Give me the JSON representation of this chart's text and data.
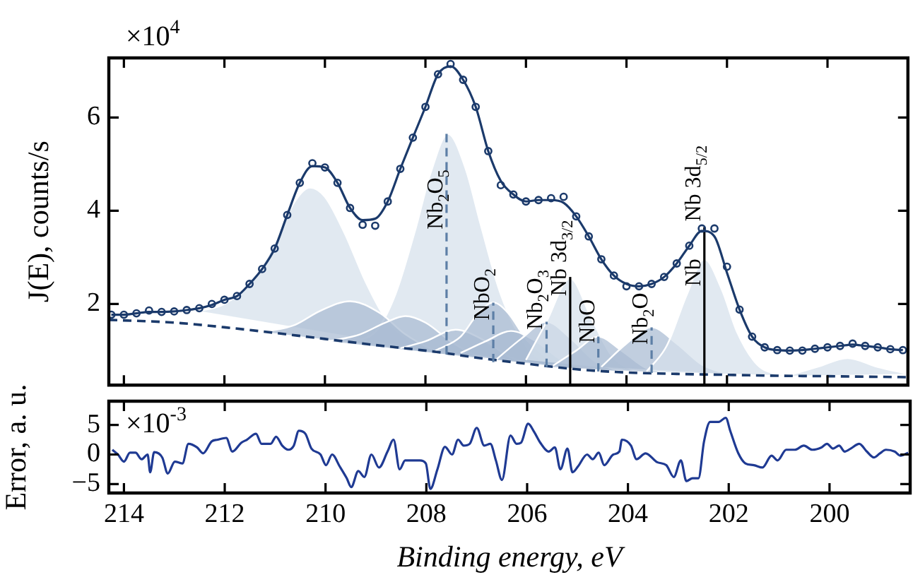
{
  "chart_data": [
    {
      "type": "line",
      "ylabel": "J(E), counts/s",
      "annotations": [
        "×10$^{4}$",
        {
          "text": "Nb$_{2}$O$_{5}$",
          "x": 207.58,
          "y": 3.6
        },
        {
          "text": "NbO$_{2}$",
          "x": 206.65,
          "y": 1.65
        },
        {
          "text": "Nb$_{2}$O$_{3}$",
          "x": 205.59,
          "y": 1.45
        },
        {
          "text": "Nb 3d$_{3/2}$",
          "x": 205.12,
          "y": 2.17
        },
        {
          "text": "NbO",
          "x": 204.56,
          "y": 1.16
        },
        {
          "text": "Nb$_{2}$O",
          "x": 203.5,
          "y": 1.13
        },
        {
          "text": "Nb",
          "x": 202.45,
          "y": 2.38
        },
        {
          "text": "Nb 3d$_{5/2}$",
          "x": 202.45,
          "y": 3.77
        }
      ],
      "x": [
        214.25,
        214.0,
        213.75,
        213.5,
        213.25,
        213.0,
        212.75,
        212.5,
        212.25,
        212.0,
        211.75,
        211.5,
        211.25,
        211.0,
        210.75,
        210.5,
        210.25,
        210.0,
        209.75,
        209.5,
        209.25,
        209.0,
        208.75,
        208.5,
        208.25,
        208.0,
        207.75,
        207.5,
        207.25,
        207.0,
        206.75,
        206.5,
        206.25,
        206.0,
        205.75,
        205.5,
        205.25,
        205.0,
        204.75,
        204.5,
        204.25,
        204.0,
        203.75,
        203.5,
        203.25,
        203.0,
        202.75,
        202.5,
        202.25,
        202.0,
        201.75,
        201.5,
        201.25,
        201.0,
        200.75,
        200.5,
        200.25,
        200.0,
        199.75,
        199.5,
        199.25,
        199.0,
        198.75,
        198.5
      ],
      "xlim": [
        214.3,
        198.4
      ],
      "xticks": [
        214,
        212,
        210,
        208,
        206,
        204,
        202,
        200
      ],
      "ylim": [
        0.26,
        7.28
      ],
      "yticks": [
        2,
        4,
        6
      ],
      "tick_labels": "y",
      "grid": false,
      "series": [
        {
          "type": "area",
          "color": "#d6e0ec",
          "x": [
            212.5,
            212,
            211.5,
            211,
            210.6,
            210.3,
            210,
            209.6,
            209.2,
            208.8,
            208.3,
            207.8
          ],
          "values": [
            1.85,
            2.0,
            2.45,
            3.3,
            4.2,
            4.5,
            4.3,
            3.5,
            2.5,
            1.7,
            1.2,
            1.0
          ]
        },
        {
          "type": "area",
          "color": "#d6e0ec",
          "x": [
            209.5,
            209,
            208.6,
            208.2,
            207.9,
            207.55,
            207.2,
            206.9,
            206.5,
            206,
            205.5,
            205
          ],
          "values": [
            1.2,
            1.4,
            2.2,
            3.6,
            4.8,
            5.65,
            4.9,
            3.7,
            2.2,
            1.1,
            0.7,
            0.6
          ]
        },
        {
          "type": "area",
          "color": "#a9bbd2",
          "x": [
            211.2,
            210.6,
            210.1,
            209.5,
            208.9,
            208.4,
            207.9,
            207.4
          ],
          "values": [
            1.4,
            1.55,
            1.85,
            2.06,
            1.8,
            1.35,
            1.05,
            0.9
          ]
        },
        {
          "type": "area",
          "color": "#a9bbd2",
          "x": [
            209.9,
            209.3,
            208.8,
            208.4,
            208,
            207.5,
            207,
            206.6
          ],
          "values": [
            1.2,
            1.35,
            1.6,
            1.74,
            1.6,
            1.2,
            0.9,
            0.8
          ]
        },
        {
          "type": "area",
          "color": "#a9bbd2",
          "x": [
            208.5,
            208,
            207.4,
            206.8,
            206.3,
            205.8
          ],
          "values": [
            1.05,
            1.2,
            1.45,
            1.2,
            0.85,
            0.72
          ]
        },
        {
          "type": "area",
          "color": "#a9bbd2",
          "x": [
            207.8,
            207.3,
            206.95,
            206.65,
            206.35,
            206,
            205.5,
            205
          ],
          "values": [
            1.0,
            1.3,
            1.8,
            2.03,
            1.8,
            1.25,
            0.8,
            0.62
          ]
        },
        {
          "type": "area",
          "color": "#a9bbd2",
          "x": [
            207.3,
            206.8,
            206.3,
            205.8,
            205.3,
            204.8
          ],
          "values": [
            0.95,
            1.2,
            1.42,
            1.2,
            0.8,
            0.6
          ]
        },
        {
          "type": "area",
          "color": "#a9bbd2",
          "x": [
            206.6,
            206.1,
            205.59,
            205.1,
            204.6,
            204.1
          ],
          "values": [
            0.8,
            1.25,
            1.62,
            1.25,
            0.75,
            0.55
          ]
        },
        {
          "type": "area",
          "color": "#d6e0ec",
          "x": [
            206,
            205.6,
            205.12,
            204.7,
            204.3,
            203.9,
            203.4
          ],
          "values": [
            0.8,
            1.6,
            2.55,
            1.7,
            0.9,
            0.6,
            0.52
          ]
        },
        {
          "type": "area",
          "color": "#a9bbd2",
          "x": [
            205.5,
            205,
            204.56,
            204.1,
            203.6,
            203.1
          ],
          "values": [
            0.65,
            1.0,
            1.3,
            1.0,
            0.62,
            0.52
          ]
        },
        {
          "type": "area",
          "color": "#a9bbd2",
          "x": [
            204.5,
            204,
            203.5,
            203,
            202.5,
            202
          ],
          "values": [
            0.65,
            1.15,
            1.5,
            1.15,
            0.7,
            0.5
          ]
        },
        {
          "type": "area",
          "color": "#d6e0ec",
          "x": [
            203.6,
            203.2,
            202.8,
            202.45,
            202.1,
            201.8,
            201.4,
            201,
            200.5
          ],
          "values": [
            0.55,
            1.1,
            2.2,
            2.96,
            2.3,
            1.4,
            0.7,
            0.5,
            0.46
          ]
        },
        {
          "type": "area",
          "color": "#d6e0ec",
          "x": [
            200.8,
            200.2,
            199.6,
            199,
            198.4
          ],
          "values": [
            0.46,
            0.65,
            0.84,
            0.65,
            0.5
          ]
        },
        {
          "type": "line",
          "color": "#1b3a6b",
          "line_style": "dashed",
          "x": [
            214.3,
            213,
            212,
            211,
            210,
            209,
            208,
            207.5,
            207,
            206,
            205,
            204,
            203,
            202,
            201,
            200,
            198.4
          ],
          "values": [
            1.66,
            1.6,
            1.5,
            1.38,
            1.25,
            1.12,
            1.0,
            0.93,
            0.85,
            0.72,
            0.6,
            0.53,
            0.5,
            0.48,
            0.46,
            0.45,
            0.43
          ]
        },
        {
          "type": "line",
          "color": "#5d7fa6",
          "line_style": "dashed",
          "x": [
            207.58,
            207.58
          ],
          "values": [
            0.92,
            5.65
          ]
        },
        {
          "type": "line",
          "color": "#5d7fa6",
          "line_style": "dashed",
          "x": [
            206.65,
            206.65
          ],
          "values": [
            0.75,
            2.03
          ]
        },
        {
          "type": "line",
          "color": "#5d7fa6",
          "line_style": "dashed",
          "x": [
            205.59,
            205.59
          ],
          "values": [
            0.65,
            1.62
          ]
        },
        {
          "type": "line",
          "color": "#000000",
          "x": [
            205.12,
            205.12
          ],
          "values": [
            0.26,
            2.58
          ]
        },
        {
          "type": "line",
          "color": "#5d7fa6",
          "line_style": "dashed",
          "x": [
            204.56,
            204.56
          ],
          "values": [
            0.55,
            1.3
          ]
        },
        {
          "type": "line",
          "color": "#5d7fa6",
          "line_style": "dashed",
          "x": [
            203.5,
            203.5
          ],
          "values": [
            0.52,
            1.5
          ]
        },
        {
          "type": "line",
          "color": "#000000",
          "x": [
            202.45,
            202.45
          ],
          "values": [
            0.26,
            3.65
          ]
        },
        {
          "type": "line",
          "color": "#1b3a6b",
          "values": [
            1.77,
            1.77,
            1.8,
            1.83,
            1.83,
            1.84,
            1.87,
            1.91,
            1.98,
            2.09,
            2.17,
            2.43,
            2.75,
            3.19,
            3.91,
            4.6,
            4.96,
            4.93,
            4.6,
            4.06,
            3.8,
            3.83,
            4.2,
            4.9,
            5.57,
            6.23,
            6.93,
            7.1,
            6.81,
            6.23,
            5.28,
            4.64,
            4.35,
            4.2,
            4.23,
            4.23,
            4.17,
            3.88,
            3.45,
            2.96,
            2.61,
            2.43,
            2.38,
            2.43,
            2.58,
            2.87,
            3.25,
            3.57,
            3.45,
            2.67,
            1.88,
            1.3,
            1.07,
            1.01,
            1.0,
            1.01,
            1.04,
            1.07,
            1.1,
            1.13,
            1.1,
            1.07,
            1.03,
            1.01
          ]
        },
        {
          "type": "scatter",
          "color": "#1b3a6b",
          "marker": "circle",
          "values": [
            1.77,
            1.77,
            1.8,
            1.86,
            1.83,
            1.84,
            1.87,
            1.91,
            2.0,
            2.09,
            2.17,
            2.43,
            2.75,
            3.19,
            3.91,
            4.6,
            5.02,
            4.93,
            4.6,
            4.06,
            3.7,
            3.68,
            4.2,
            4.9,
            5.57,
            6.23,
            6.93,
            7.15,
            6.81,
            6.23,
            5.28,
            4.55,
            4.35,
            4.2,
            4.23,
            4.27,
            4.3,
            3.88,
            3.45,
            2.96,
            2.61,
            2.38,
            2.38,
            2.43,
            2.58,
            2.87,
            3.25,
            3.62,
            3.62,
            2.8,
            1.88,
            1.3,
            1.07,
            1.01,
            1.0,
            1.0,
            1.04,
            1.07,
            1.1,
            1.15,
            1.1,
            1.07,
            1.03,
            1.01
          ]
        }
      ]
    },
    {
      "type": "line",
      "xlabel": "Binding energy, eV",
      "ylabel": "Error, a. u.",
      "annotations": [
        "×10$^{-3}$"
      ],
      "x": [
        214.23,
        214.12,
        214.0,
        213.88,
        213.77,
        213.65,
        213.53,
        213.48,
        213.4,
        213.24,
        213.13,
        212.99,
        212.84,
        212.72,
        212.55,
        212.43,
        212.26,
        212.14,
        211.97,
        211.85,
        211.67,
        211.56,
        211.38,
        211.27,
        211.09,
        210.98,
        210.86,
        210.74,
        210.63,
        210.53,
        210.4,
        210.28,
        210.1,
        209.99,
        209.87,
        209.72,
        209.58,
        209.49,
        209.35,
        209.23,
        209.09,
        208.94,
        208.77,
        208.65,
        208.53,
        208.42,
        208.24,
        208.13,
        208.01,
        207.92,
        207.78,
        207.63,
        207.49,
        207.37,
        207.26,
        207.14,
        207.0,
        206.85,
        206.73,
        206.62,
        206.5,
        206.33,
        206.21,
        206.12,
        205.98,
        205.86,
        205.74,
        205.57,
        205.45,
        205.34,
        205.2,
        205.1,
        204.99,
        204.81,
        204.7,
        204.58,
        204.47,
        204.29,
        204.17,
        204.12,
        203.94,
        203.83,
        203.65,
        203.42,
        203.24,
        203.09,
        202.95,
        202.84,
        202.72,
        202.6,
        202.49,
        202.37,
        202.2,
        202.06,
        201.97,
        201.81,
        201.67,
        201.5,
        201.33,
        201.15,
        201.03,
        200.86,
        200.69,
        200.51,
        200.34,
        200.16,
        200.05,
        199.93,
        199.81,
        199.7,
        199.58,
        199.41,
        199.26,
        199.12,
        199.0,
        198.88,
        198.71,
        198.59,
        198.44
      ],
      "xlim": [
        214.3,
        198.4
      ],
      "xticks": [
        214,
        212,
        210,
        208,
        206,
        204,
        202,
        200
      ],
      "ylim": [
        -6.5,
        9
      ],
      "yticks": [
        {
          "value": -5,
          "label": "−5"
        },
        0,
        5
      ],
      "grid": false,
      "series": [
        {
          "color": "#1f3a93",
          "values": [
            0.8,
            0,
            -1.2,
            0.3,
            0.3,
            -0.8,
            0,
            -3.0,
            0.4,
            -0.5,
            -3.2,
            -1.2,
            -1.5,
            1.8,
            1.2,
            0.2,
            2.2,
            2.5,
            2.8,
            0.5,
            2.0,
            2.5,
            3.5,
            1.8,
            1.8,
            3.0,
            1.5,
            0.8,
            1.5,
            4.0,
            3.5,
            1.0,
            0,
            -1.8,
            0,
            -2.0,
            -4.0,
            -5.5,
            -2.8,
            -3.8,
            0,
            -2.2,
            0.5,
            2.5,
            -2.5,
            -1.0,
            -1.0,
            -1.0,
            -1.5,
            -5.8,
            -2.5,
            1.3,
            0,
            2.5,
            1.5,
            1.8,
            4.5,
            1.5,
            1.8,
            -1.0,
            -4.3,
            3.2,
            1.8,
            2.0,
            5.2,
            3.8,
            2.0,
            0.5,
            1.2,
            -2.5,
            1.0,
            -3.0,
            -2.0,
            0,
            -0.8,
            0.3,
            -1.8,
            0,
            0.5,
            2.5,
            1.5,
            -0.8,
            0.2,
            -1.3,
            -1.8,
            -3.8,
            -1.0,
            -4.5,
            -4.0,
            -4.0,
            2.2,
            5.5,
            5.5,
            6.2,
            4.0,
            0.2,
            -1.5,
            -1.8,
            -2.2,
            -0.2,
            -1.0,
            0.8,
            0.8,
            1.5,
            0.8,
            1.2,
            1.8,
            1.0,
            1.5,
            0.5,
            1.0,
            1.8,
            0.5,
            -0.5,
            0.2,
            0.8,
            0.5,
            -0.2,
            0.3
          ]
        }
      ]
    }
  ]
}
